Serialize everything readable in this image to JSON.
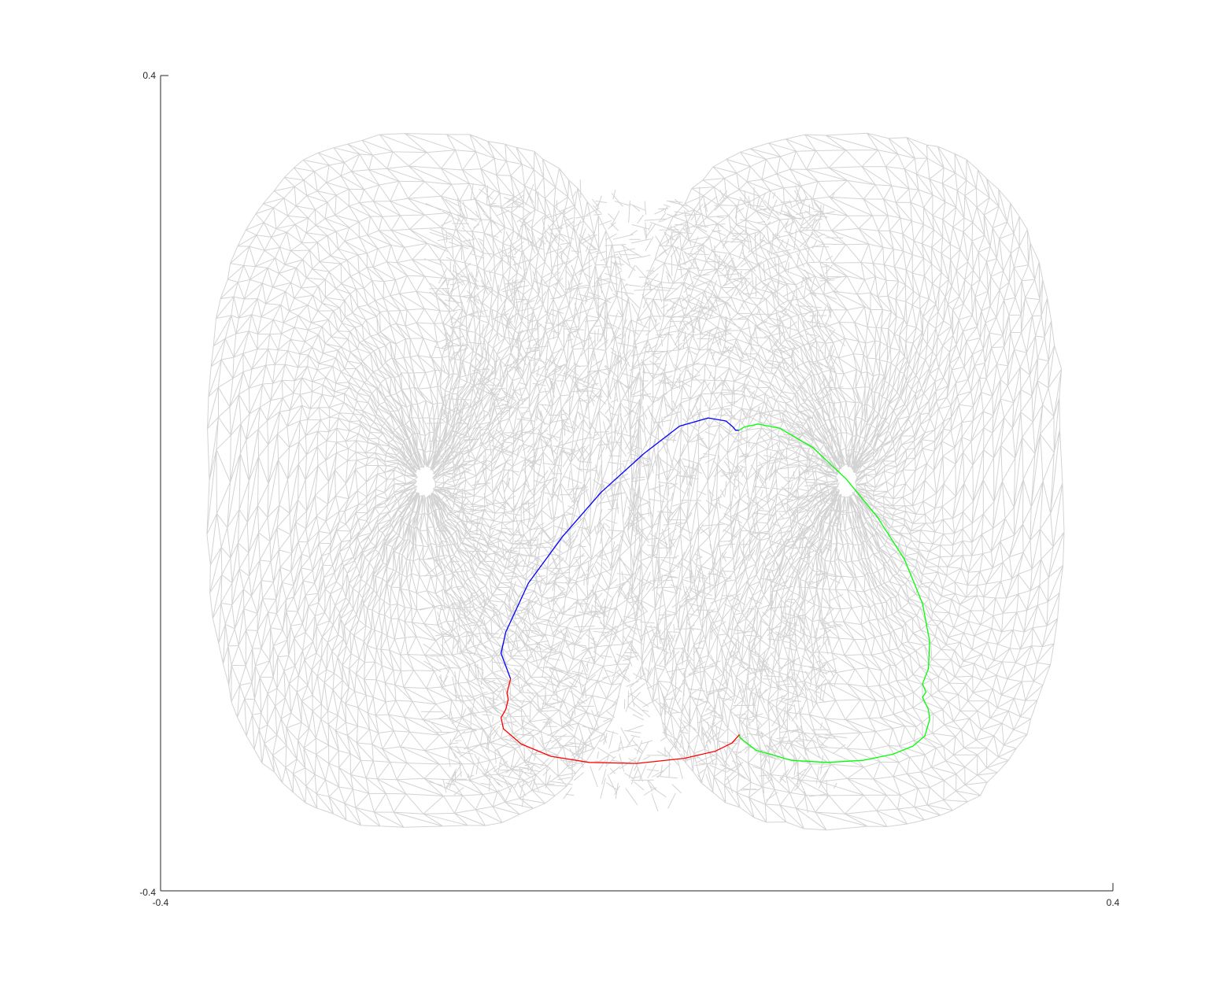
{
  "chart_data": {
    "type": "line",
    "title": "",
    "xlabel": "",
    "ylabel": "",
    "xlim": [
      -0.4,
      0.4
    ],
    "ylim": [
      -0.4,
      0.4
    ],
    "x_ticks": [
      "-0.4",
      "0.4"
    ],
    "y_ticks": [
      "-0.4",
      "0.4"
    ],
    "grid": false,
    "legend": "none",
    "background_mesh": {
      "color": "#d3d3d3",
      "description_visible": "light gray triangulated mesh of two overlapping rounded lobes"
    },
    "series": [
      {
        "color": "#0000ff",
        "points": [
          [
            -0.106,
            -0.192
          ],
          [
            -0.114,
            -0.167
          ],
          [
            -0.11,
            -0.146
          ],
          [
            -0.091,
            -0.098
          ],
          [
            -0.062,
            -0.052
          ],
          [
            -0.03,
            -0.009
          ],
          [
            0.006,
            0.029
          ],
          [
            0.036,
            0.056
          ],
          [
            0.06,
            0.064
          ],
          [
            0.075,
            0.061
          ],
          [
            0.081,
            0.055
          ],
          [
            0.083,
            0.052
          ],
          [
            0.086,
            0.052
          ]
        ]
      },
      {
        "color": "#00ff00",
        "points": [
          [
            0.086,
            0.052
          ],
          [
            0.09,
            0.055
          ],
          [
            0.102,
            0.058
          ],
          [
            0.12,
            0.054
          ],
          [
            0.148,
            0.035
          ],
          [
            0.176,
            0.004
          ],
          [
            0.202,
            -0.033
          ],
          [
            0.225,
            -0.075
          ],
          [
            0.24,
            -0.118
          ],
          [
            0.246,
            -0.155
          ],
          [
            0.245,
            -0.182
          ],
          [
            0.24,
            -0.197
          ],
          [
            0.243,
            -0.205
          ],
          [
            0.24,
            -0.21
          ],
          [
            0.245,
            -0.222
          ],
          [
            0.246,
            -0.232
          ],
          [
            0.242,
            -0.248
          ],
          [
            0.232,
            -0.258
          ],
          [
            0.215,
            -0.266
          ],
          [
            0.19,
            -0.272
          ],
          [
            0.16,
            -0.274
          ],
          [
            0.13,
            -0.272
          ],
          [
            0.1,
            -0.262
          ],
          [
            0.087,
            -0.25
          ],
          [
            0.086,
            -0.247
          ]
        ]
      },
      {
        "color": "#ff0000",
        "points": [
          [
            0.086,
            -0.247
          ],
          [
            0.08,
            -0.255
          ],
          [
            0.066,
            -0.263
          ],
          [
            0.04,
            -0.27
          ],
          [
            0.0,
            -0.275
          ],
          [
            -0.04,
            -0.274
          ],
          [
            -0.072,
            -0.268
          ],
          [
            -0.097,
            -0.256
          ],
          [
            -0.112,
            -0.241
          ],
          [
            -0.114,
            -0.23
          ],
          [
            -0.11,
            -0.222
          ],
          [
            -0.108,
            -0.212
          ],
          [
            -0.109,
            -0.206
          ],
          [
            -0.106,
            -0.192
          ]
        ]
      }
    ]
  }
}
